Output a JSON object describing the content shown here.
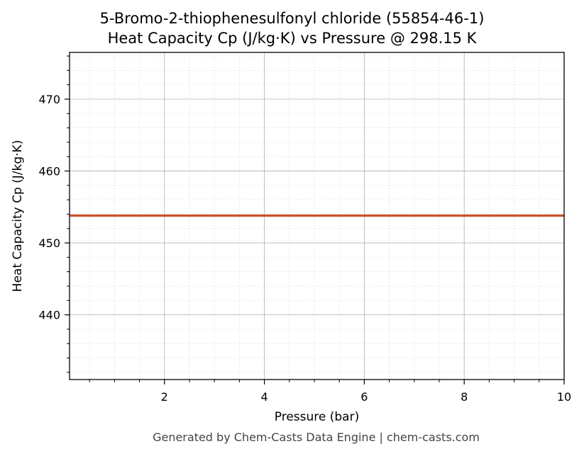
{
  "chart_data": {
    "type": "line",
    "title_line1": "5-Bromo-2-thiophenesulfonyl chloride (55854-46-1)",
    "title_line2": "Heat Capacity Cp (J/kg·K) vs Pressure @ 298.15 K",
    "xlabel": "Pressure (bar)",
    "ylabel": "Heat Capacity Cp (J/kg·K)",
    "xlim": [
      0.1,
      10
    ],
    "ylim": [
      431,
      476.5
    ],
    "x_ticks": [
      2,
      4,
      6,
      8,
      10
    ],
    "y_ticks": [
      440,
      450,
      460,
      470
    ],
    "grid": true,
    "series": [
      {
        "color": "#c8532c",
        "x": [
          0.1,
          1,
          2,
          3,
          4,
          5,
          6,
          7,
          8,
          9,
          10
        ],
        "y": [
          453.8,
          453.8,
          453.8,
          453.8,
          453.8,
          453.8,
          453.8,
          453.8,
          453.8,
          453.8,
          453.8
        ]
      }
    ]
  },
  "footer": "Generated by Chem-Casts Data Engine | chem-casts.com"
}
